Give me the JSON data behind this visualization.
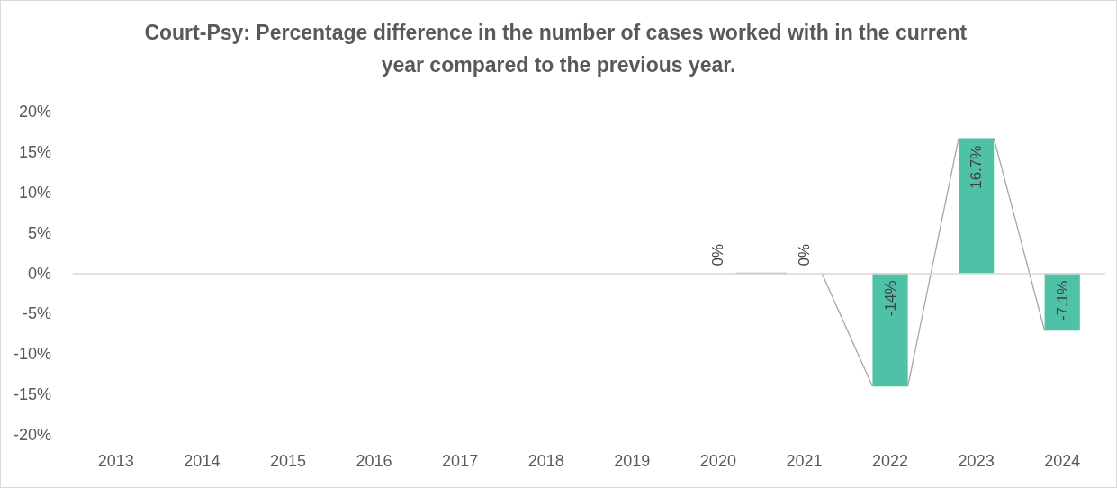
{
  "chart_data": {
    "type": "bar",
    "title": "Court-Psy: Percentage difference in the number of cases worked with in the current year compared to the previous year.",
    "categories": [
      "2013",
      "2014",
      "2015",
      "2016",
      "2017",
      "2018",
      "2019",
      "2020",
      "2021",
      "2022",
      "2023",
      "2024"
    ],
    "values": [
      null,
      null,
      null,
      null,
      null,
      null,
      null,
      0,
      0,
      -14,
      16.7,
      -7.1
    ],
    "value_labels": [
      null,
      null,
      null,
      null,
      null,
      null,
      null,
      "0%",
      "0%",
      "-14%",
      "16.7%",
      "-7.1%"
    ],
    "color": "#4fc1a6",
    "ylim": [
      -20,
      20
    ],
    "yticks": [
      {
        "value": -20,
        "label": "-20%"
      },
      {
        "value": -15,
        "label": "-15%"
      },
      {
        "value": -10,
        "label": "-10%"
      },
      {
        "value": -5,
        "label": "-5%"
      },
      {
        "value": 0,
        "label": "0%"
      },
      {
        "value": 5,
        "label": "5%"
      },
      {
        "value": 10,
        "label": "10%"
      },
      {
        "value": 15,
        "label": "15%"
      },
      {
        "value": 20,
        "label": "20%"
      }
    ],
    "ref_lines": [
      {
        "axis": "y",
        "value": 0,
        "color": "#d9d9d9"
      }
    ],
    "grid": false
  }
}
